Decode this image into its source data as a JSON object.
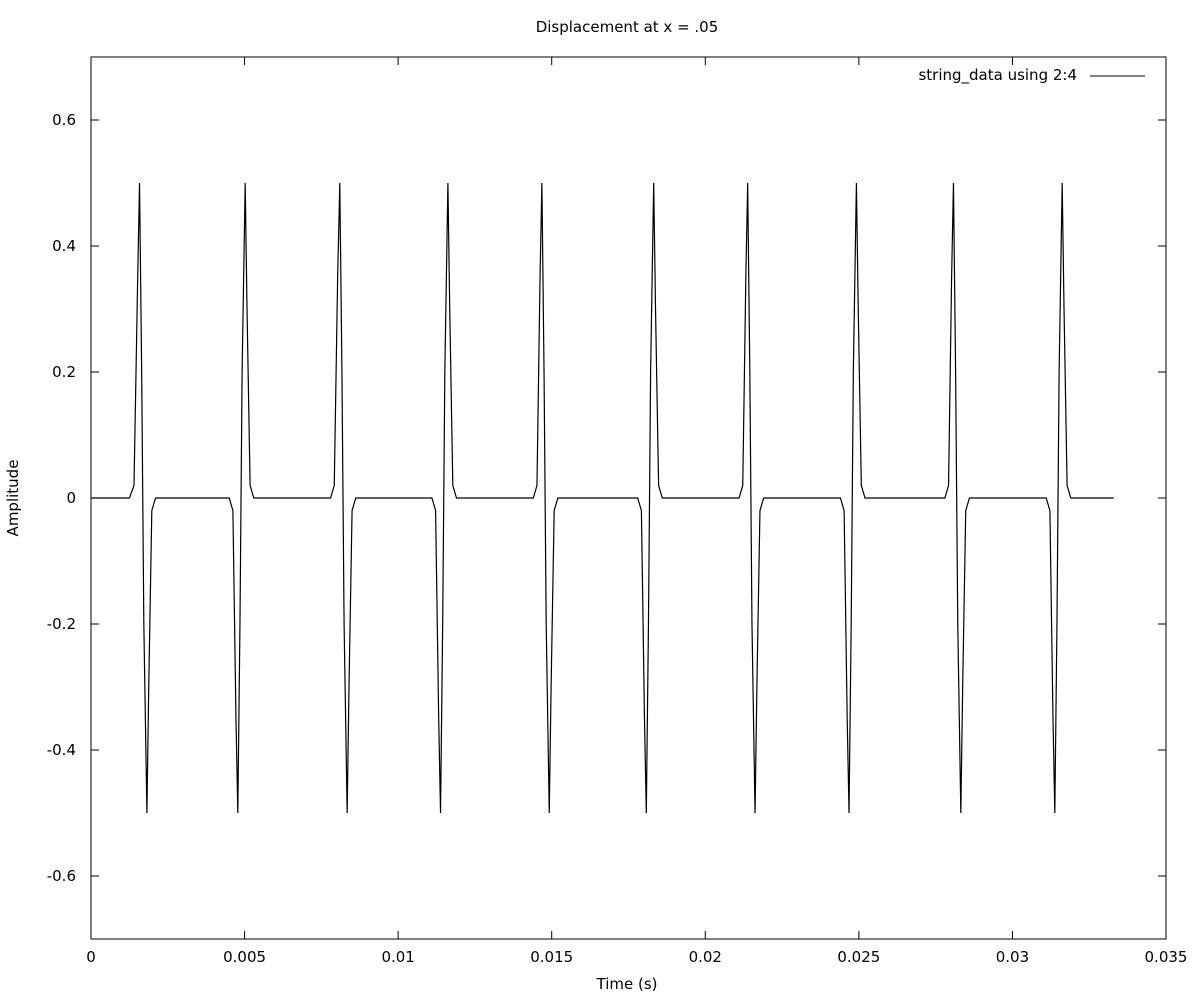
{
  "chart_data": {
    "type": "line",
    "title": "Displacement at x = .05",
    "xlabel": "Time (s)",
    "ylabel": "Amplitude",
    "xlim": [
      0,
      0.035
    ],
    "ylim": [
      -0.7,
      0.7
    ],
    "grid": false,
    "legend_position": "top-right",
    "x_ticks": [
      {
        "value": 0,
        "label": "0"
      },
      {
        "value": 0.005,
        "label": "0.005"
      },
      {
        "value": 0.01,
        "label": "0.01"
      },
      {
        "value": 0.015,
        "label": "0.015"
      },
      {
        "value": 0.02,
        "label": "0.02"
      },
      {
        "value": 0.025,
        "label": "0.025"
      },
      {
        "value": 0.03,
        "label": "0.03"
      },
      {
        "value": 0.035,
        "label": "0.035"
      }
    ],
    "y_ticks": [
      {
        "value": 0.6,
        "label": "0.6"
      },
      {
        "value": 0.4,
        "label": "0.4"
      },
      {
        "value": 0.2,
        "label": "0.2"
      },
      {
        "value": 0,
        "label": "0"
      },
      {
        "value": -0.2,
        "label": "-0.2"
      },
      {
        "value": -0.4,
        "label": "-0.4"
      },
      {
        "value": -0.6,
        "label": "-0.6"
      }
    ],
    "series": [
      {
        "name": "string_data using 2:4",
        "color": "#000000",
        "x": [
          0,
          0.00125,
          0.0014,
          0.00152,
          0.00158,
          0.00165,
          0.00172,
          0.00182,
          0.00188,
          0.00198,
          0.0021,
          0.0025,
          0.0045,
          0.00462,
          0.00472,
          0.00478,
          0.00485,
          0.00492,
          0.00502,
          0.00508,
          0.00518,
          0.0053,
          0.0055,
          0.0078,
          0.00792,
          0.00803,
          0.0081,
          0.00817,
          0.00824,
          0.00834,
          0.0084,
          0.0085,
          0.00862,
          0.009,
          0.0111,
          0.01122,
          0.01132,
          0.01138,
          0.01145,
          0.01152,
          0.01162,
          0.01168,
          0.01178,
          0.0119,
          0.0122,
          0.0144,
          0.01452,
          0.01462,
          0.01468,
          0.01475,
          0.01482,
          0.01492,
          0.01498,
          0.01508,
          0.0152,
          0.0155,
          0.0178,
          0.01792,
          0.01802,
          0.01808,
          0.01815,
          0.01822,
          0.01832,
          0.01838,
          0.01848,
          0.0186,
          0.0189,
          0.0211,
          0.02122,
          0.02132,
          0.02138,
          0.02145,
          0.02152,
          0.02162,
          0.02168,
          0.02178,
          0.0219,
          0.0222,
          0.0244,
          0.02452,
          0.02462,
          0.02468,
          0.02475,
          0.02482,
          0.02492,
          0.02498,
          0.02508,
          0.0252,
          0.0255,
          0.0278,
          0.02792,
          0.02802,
          0.02808,
          0.02815,
          0.02822,
          0.02832,
          0.02838,
          0.02848,
          0.0286,
          0.0289,
          0.0311,
          0.03122,
          0.03132,
          0.03138,
          0.03145,
          0.03152,
          0.03162,
          0.03168,
          0.03178,
          0.0319,
          0.0333
        ],
        "y": [
          0,
          0,
          0.02,
          0.35,
          0.5,
          0.2,
          -0.2,
          -0.5,
          -0.3,
          -0.02,
          0,
          0,
          0,
          -0.02,
          -0.35,
          -0.5,
          -0.2,
          0.2,
          0.5,
          0.3,
          0.02,
          0,
          0,
          0,
          0.02,
          0.35,
          0.5,
          0.2,
          -0.2,
          -0.5,
          -0.3,
          -0.02,
          0,
          0,
          0,
          -0.02,
          -0.35,
          -0.5,
          -0.2,
          0.2,
          0.5,
          0.3,
          0.02,
          0,
          0,
          0,
          0.02,
          0.35,
          0.5,
          0.2,
          -0.2,
          -0.5,
          -0.3,
          -0.02,
          0,
          0,
          0,
          -0.02,
          -0.35,
          -0.5,
          -0.2,
          0.2,
          0.5,
          0.3,
          0.02,
          0,
          0,
          0,
          0.02,
          0.35,
          0.5,
          0.2,
          -0.2,
          -0.5,
          -0.3,
          -0.02,
          0,
          0,
          0,
          -0.02,
          -0.35,
          -0.5,
          -0.2,
          0.2,
          0.5,
          0.3,
          0.02,
          0,
          0,
          0,
          0.02,
          0.35,
          0.5,
          0.2,
          -0.2,
          -0.5,
          -0.3,
          -0.02,
          0,
          0,
          0,
          -0.02,
          -0.35,
          -0.5,
          -0.2,
          0.2,
          0.5,
          0.3,
          0.02,
          0,
          0
        ]
      }
    ]
  }
}
